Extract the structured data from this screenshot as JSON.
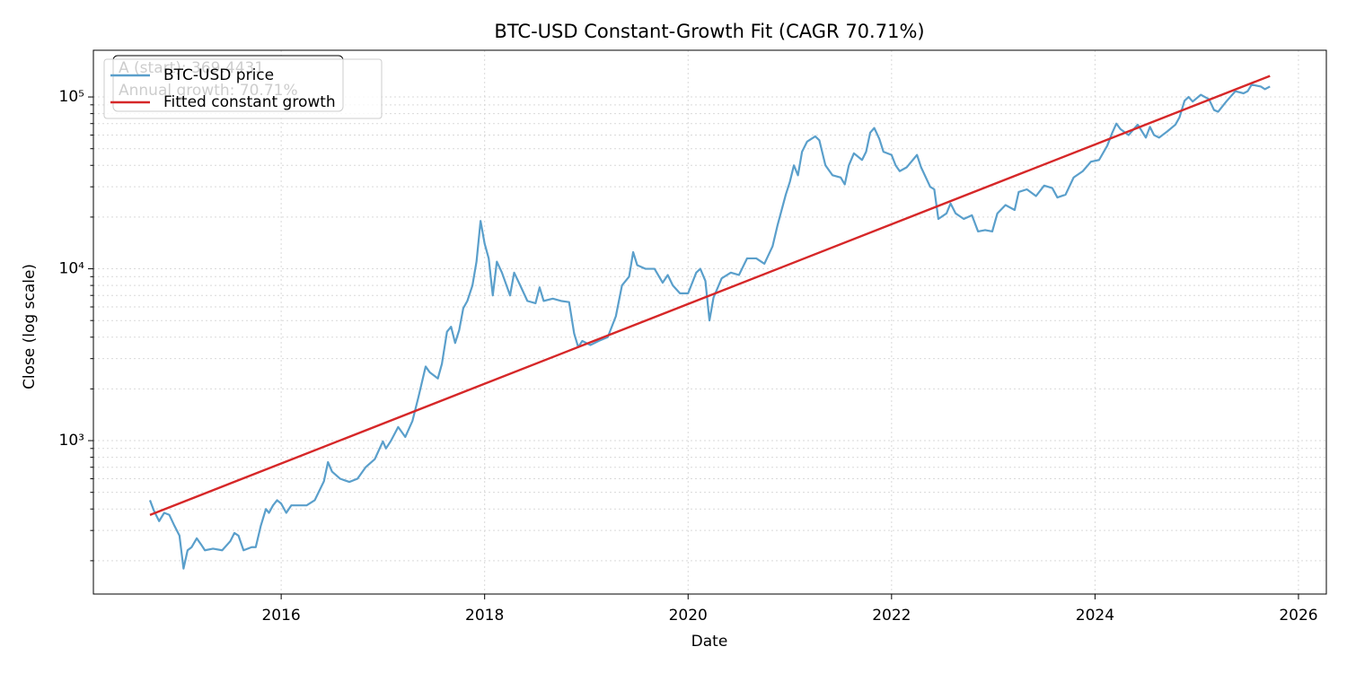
{
  "chart_data": {
    "type": "line",
    "title": "BTC-USD Constant-Growth Fit (CAGR 70.71%)",
    "x_label": "Date",
    "y_label": "Close (log scale)",
    "y_log": true,
    "grid": true,
    "legend": "upper left",
    "annotation": [
      "A (start): 369.4431",
      "Annual growth: 70.71%"
    ],
    "xlim": [
      2014.154,
      2026.274
    ],
    "xticks": [
      2016,
      2018,
      2020,
      2022,
      2024,
      2026
    ],
    "ylim": [
      128,
      187000
    ],
    "yticks": [
      {
        "value": 1000,
        "label": "10³"
      },
      {
        "value": 10000,
        "label": "10⁴"
      },
      {
        "value": 100000,
        "label": "10⁵"
      }
    ],
    "yminor_ticks": [
      200,
      300,
      400,
      500,
      600,
      700,
      800,
      900,
      2000,
      3000,
      4000,
      5000,
      6000,
      7000,
      8000,
      9000,
      20000,
      30000,
      40000,
      50000,
      60000,
      70000,
      80000,
      90000
    ],
    "series": [
      {
        "name": "BTC-USD price",
        "color": "#5a9fcb",
        "x": [
          2014.71,
          2014.75,
          2014.8,
          2014.85,
          2014.9,
          2014.95,
          2015,
          2015.04,
          2015.08,
          2015.12,
          2015.17,
          2015.21,
          2015.25,
          2015.33,
          2015.42,
          2015.5,
          2015.54,
          2015.58,
          2015.63,
          2015.67,
          2015.71,
          2015.75,
          2015.8,
          2015.85,
          2015.88,
          2015.92,
          2015.96,
          2016,
          2016.05,
          2016.1,
          2016.17,
          2016.25,
          2016.33,
          2016.42,
          2016.46,
          2016.5,
          2016.58,
          2016.67,
          2016.75,
          2016.83,
          2016.92,
          2017,
          2017.03,
          2017.08,
          2017.15,
          2017.22,
          2017.29,
          2017.35,
          2017.42,
          2017.46,
          2017.54,
          2017.58,
          2017.63,
          2017.67,
          2017.71,
          2017.75,
          2017.79,
          2017.83,
          2017.88,
          2017.92,
          2017.96,
          2018,
          2018.04,
          2018.08,
          2018.12,
          2018.17,
          2018.25,
          2018.29,
          2018.35,
          2018.42,
          2018.5,
          2018.54,
          2018.58,
          2018.67,
          2018.75,
          2018.83,
          2018.88,
          2018.92,
          2018.96,
          2019.04,
          2019.12,
          2019.21,
          2019.29,
          2019.35,
          2019.42,
          2019.46,
          2019.5,
          2019.58,
          2019.67,
          2019.75,
          2019.8,
          2019.85,
          2019.92,
          2020,
          2020.08,
          2020.12,
          2020.17,
          2020.21,
          2020.25,
          2020.33,
          2020.42,
          2020.5,
          2020.58,
          2020.67,
          2020.75,
          2020.83,
          2020.88,
          2020.96,
          2021,
          2021.04,
          2021.08,
          2021.12,
          2021.17,
          2021.25,
          2021.29,
          2021.35,
          2021.42,
          2021.5,
          2021.54,
          2021.58,
          2021.63,
          2021.71,
          2021.75,
          2021.79,
          2021.83,
          2021.88,
          2021.92,
          2022,
          2022.04,
          2022.08,
          2022.15,
          2022.25,
          2022.29,
          2022.38,
          2022.42,
          2022.46,
          2022.54,
          2022.58,
          2022.63,
          2022.71,
          2022.79,
          2022.85,
          2022.92,
          2022.99,
          2023.04,
          2023.12,
          2023.21,
          2023.25,
          2023.33,
          2023.42,
          2023.5,
          2023.58,
          2023.63,
          2023.71,
          2023.79,
          2023.88,
          2023.96,
          2024.04,
          2024.12,
          2024.17,
          2024.21,
          2024.25,
          2024.33,
          2024.42,
          2024.5,
          2024.54,
          2024.58,
          2024.63,
          2024.71,
          2024.79,
          2024.83,
          2024.88,
          2024.92,
          2024.96,
          2025.04,
          2025.12,
          2025.17,
          2025.21,
          2025.29,
          2025.38,
          2025.46,
          2025.5,
          2025.54,
          2025.63,
          2025.67,
          2025.72
        ],
        "values": [
          450,
          390,
          340,
          380,
          370,
          320,
          280,
          180,
          230,
          240,
          270,
          250,
          230,
          235,
          230,
          260,
          290,
          280,
          230,
          235,
          240,
          240,
          320,
          400,
          380,
          420,
          450,
          430,
          380,
          420,
          420,
          420,
          450,
          580,
          750,
          660,
          600,
          575,
          600,
          700,
          780,
          990,
          900,
          1000,
          1200,
          1050,
          1300,
          1800,
          2700,
          2500,
          2300,
          2800,
          4300,
          4600,
          3700,
          4400,
          5900,
          6500,
          8000,
          11000,
          19000,
          14000,
          11500,
          7000,
          11000,
          9500,
          7000,
          9500,
          8000,
          6500,
          6300,
          7800,
          6500,
          6700,
          6500,
          6400,
          4200,
          3500,
          3800,
          3600,
          3800,
          4000,
          5300,
          8000,
          9000,
          12500,
          10500,
          10000,
          10000,
          8300,
          9200,
          8000,
          7200,
          7200,
          9500,
          10000,
          8500,
          5000,
          6800,
          8800,
          9500,
          9200,
          11500,
          11500,
          10700,
          13500,
          18000,
          27000,
          32000,
          40000,
          35000,
          48000,
          55000,
          59000,
          56000,
          40000,
          35000,
          34000,
          31000,
          40000,
          47000,
          43000,
          48000,
          62000,
          66000,
          57000,
          48000,
          46000,
          40000,
          37000,
          39000,
          46000,
          39000,
          30000,
          29000,
          19500,
          21000,
          24000,
          21000,
          19500,
          20500,
          16500,
          16800,
          16500,
          21000,
          23500,
          22000,
          28000,
          29000,
          26500,
          30500,
          29500,
          26000,
          27000,
          34000,
          37000,
          42000,
          43000,
          52000,
          62000,
          70000,
          65000,
          60000,
          69000,
          58000,
          67000,
          60000,
          58000,
          63000,
          69000,
          76000,
          95000,
          100000,
          94000,
          103000,
          97000,
          84000,
          82000,
          94000,
          108000,
          105000,
          108000,
          118000,
          115000,
          111000,
          115000
        ]
      },
      {
        "name": "Fitted constant growth",
        "color": "#d62728",
        "x": [
          2014.71,
          2025.72
        ],
        "values": [
          369.4431,
          132600
        ]
      }
    ]
  }
}
